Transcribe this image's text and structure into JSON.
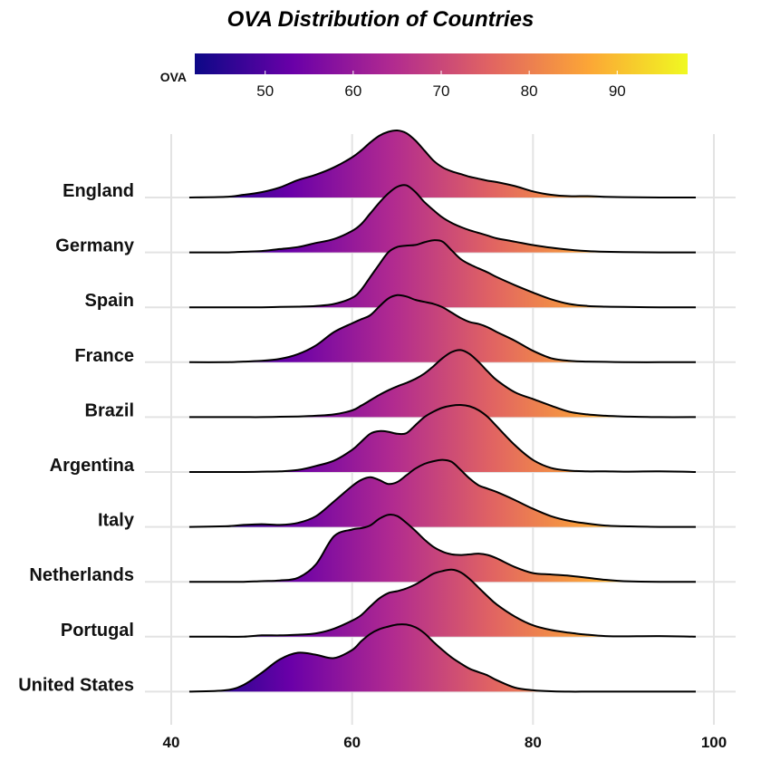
{
  "chart_data": {
    "type": "ridgeline",
    "title": "OVA Distribution of Countries",
    "xlabel": "",
    "ylabel": "",
    "xlim": [
      42,
      98
    ],
    "x_ticks": [
      40,
      60,
      80,
      100
    ],
    "grid": true,
    "colorbar": {
      "title": "OVA",
      "range": [
        42,
        98
      ],
      "ticks": [
        50,
        60,
        70,
        80,
        90
      ],
      "colormap": "plasma",
      "stops": [
        "#0d0887",
        "#6a00a8",
        "#b12a90",
        "#e16462",
        "#fca636",
        "#f0f921"
      ]
    },
    "x": [
      42,
      46,
      48,
      50,
      52,
      54,
      56,
      58,
      60,
      61,
      62,
      63,
      64,
      65,
      66,
      67,
      68,
      69,
      70,
      71,
      72,
      73,
      74,
      75,
      76,
      78,
      80,
      82,
      84,
      86,
      88,
      90,
      94,
      98
    ],
    "series": [
      {
        "name": "England",
        "density": [
          0,
          0.01,
          0.04,
          0.08,
          0.15,
          0.26,
          0.34,
          0.45,
          0.6,
          0.7,
          0.82,
          0.92,
          0.98,
          1.0,
          0.96,
          0.85,
          0.7,
          0.55,
          0.45,
          0.39,
          0.35,
          0.31,
          0.28,
          0.25,
          0.23,
          0.17,
          0.09,
          0.04,
          0.02,
          0.02,
          0.01,
          0.005,
          0,
          0
        ]
      },
      {
        "name": "Germany",
        "density": [
          0,
          0,
          0.01,
          0.02,
          0.05,
          0.08,
          0.14,
          0.2,
          0.32,
          0.42,
          0.58,
          0.74,
          0.88,
          0.98,
          1.0,
          0.9,
          0.75,
          0.63,
          0.52,
          0.44,
          0.38,
          0.33,
          0.29,
          0.25,
          0.21,
          0.16,
          0.11,
          0.07,
          0.04,
          0.02,
          0.01,
          0.005,
          0,
          0
        ]
      },
      {
        "name": "Spain",
        "density": [
          0,
          0,
          0,
          0,
          0.005,
          0.01,
          0.02,
          0.05,
          0.14,
          0.26,
          0.45,
          0.64,
          0.82,
          0.9,
          0.92,
          0.93,
          0.97,
          1.0,
          0.98,
          0.85,
          0.72,
          0.64,
          0.58,
          0.52,
          0.45,
          0.33,
          0.22,
          0.12,
          0.05,
          0.02,
          0.01,
          0.005,
          0,
          0
        ]
      },
      {
        "name": "France",
        "density": [
          0,
          0,
          0.01,
          0.02,
          0.05,
          0.12,
          0.25,
          0.45,
          0.58,
          0.64,
          0.7,
          0.83,
          0.95,
          1.0,
          0.98,
          0.93,
          0.9,
          0.87,
          0.82,
          0.74,
          0.66,
          0.6,
          0.57,
          0.52,
          0.45,
          0.32,
          0.17,
          0.06,
          0.02,
          0.01,
          0.005,
          0,
          0,
          0
        ]
      },
      {
        "name": "Brazil",
        "density": [
          0,
          0,
          0,
          0,
          0.005,
          0.01,
          0.02,
          0.04,
          0.1,
          0.17,
          0.25,
          0.33,
          0.4,
          0.46,
          0.51,
          0.57,
          0.65,
          0.76,
          0.88,
          0.97,
          1.0,
          0.94,
          0.82,
          0.68,
          0.55,
          0.37,
          0.27,
          0.17,
          0.08,
          0.04,
          0.02,
          0.01,
          0,
          0
        ]
      },
      {
        "name": "Argentina",
        "density": [
          0,
          0,
          0,
          0.005,
          0.01,
          0.03,
          0.09,
          0.17,
          0.33,
          0.45,
          0.57,
          0.61,
          0.6,
          0.57,
          0.58,
          0.7,
          0.82,
          0.9,
          0.96,
          0.99,
          1.0,
          0.98,
          0.92,
          0.82,
          0.68,
          0.4,
          0.18,
          0.06,
          0.02,
          0.01,
          0.01,
          0.005,
          0.01,
          0
        ]
      },
      {
        "name": "Italy",
        "density": [
          0,
          0.01,
          0.03,
          0.04,
          0.03,
          0.06,
          0.16,
          0.38,
          0.61,
          0.7,
          0.74,
          0.7,
          0.64,
          0.67,
          0.77,
          0.87,
          0.94,
          0.98,
          1.0,
          0.97,
          0.85,
          0.72,
          0.62,
          0.57,
          0.52,
          0.4,
          0.27,
          0.16,
          0.09,
          0.05,
          0.02,
          0.01,
          0,
          0
        ]
      },
      {
        "name": "Netherlands",
        "density": [
          0,
          0,
          0,
          0.01,
          0.02,
          0.06,
          0.26,
          0.68,
          0.78,
          0.8,
          0.84,
          0.94,
          1.0,
          0.98,
          0.88,
          0.76,
          0.63,
          0.52,
          0.45,
          0.41,
          0.4,
          0.41,
          0.42,
          0.4,
          0.35,
          0.22,
          0.13,
          0.11,
          0.09,
          0.06,
          0.03,
          0.01,
          0,
          0
        ]
      },
      {
        "name": "Portugal",
        "density": [
          0,
          0,
          0,
          0.02,
          0.02,
          0.03,
          0.05,
          0.12,
          0.24,
          0.32,
          0.45,
          0.57,
          0.65,
          0.68,
          0.72,
          0.78,
          0.86,
          0.94,
          0.98,
          1.0,
          0.96,
          0.86,
          0.73,
          0.6,
          0.48,
          0.3,
          0.17,
          0.1,
          0.06,
          0.03,
          0.01,
          0.005,
          0.01,
          0
        ]
      },
      {
        "name": "United States",
        "density": [
          0,
          0.02,
          0.1,
          0.28,
          0.48,
          0.58,
          0.55,
          0.5,
          0.62,
          0.75,
          0.86,
          0.93,
          0.97,
          1.0,
          1.0,
          0.96,
          0.87,
          0.74,
          0.62,
          0.51,
          0.42,
          0.34,
          0.29,
          0.24,
          0.17,
          0.06,
          0.02,
          0.005,
          0,
          0,
          0,
          0,
          0,
          0
        ]
      }
    ]
  }
}
